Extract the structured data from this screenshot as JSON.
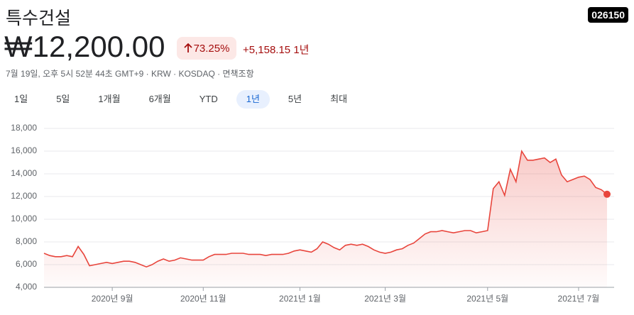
{
  "header": {
    "title": "특수건설",
    "ticker": "026150",
    "price": "₩12,200.00",
    "change_percent": "73.25%",
    "change": "+5,158.15",
    "period": "1년",
    "meta": "7월 19일, 오후 5시 52분 44초 GMT+9 · KRW · KOSDAQ · 면책조항"
  },
  "ranges": [
    "1일",
    "5일",
    "1개월",
    "6개월",
    "YTD",
    "1년",
    "5년",
    "최대"
  ],
  "selected_range": 5,
  "chart_data": {
    "type": "line",
    "series": [
      {
        "color": "#e8453c",
        "values": [
          7000,
          6800,
          6700,
          6700,
          6800,
          6700,
          7600,
          6900,
          5900,
          6000,
          6100,
          6200,
          6100,
          6200,
          6300,
          6300,
          6200,
          6000,
          5800,
          6000,
          6300,
          6500,
          6300,
          6400,
          6600,
          6500,
          6400,
          6400,
          6400,
          6700,
          6900,
          6900,
          6900,
          7000,
          7000,
          7000,
          6900,
          6900,
          6900,
          6800,
          6900,
          6900,
          6900,
          7000,
          7200,
          7300,
          7200,
          7100,
          7400,
          8000,
          7800,
          7500,
          7300,
          7700,
          7800,
          7700,
          7800,
          7600,
          7300,
          7100,
          7000,
          7100,
          7300,
          7400,
          7700,
          7900,
          8300,
          8700,
          8900,
          8900,
          9000,
          8900,
          8800,
          8900,
          9000,
          9000,
          8800,
          8900,
          9000,
          12700,
          13300,
          12100,
          14400,
          13300,
          16000,
          15200,
          15200,
          15300,
          15400,
          15000,
          15300,
          13900,
          13300,
          13500,
          13700,
          13800,
          13500,
          12800,
          12600,
          12200
        ]
      }
    ],
    "xlim": [
      0,
      99
    ],
    "xticks": [
      {
        "value": 12,
        "label": "2020년 9월"
      },
      {
        "value": 28,
        "label": "2020년 11월"
      },
      {
        "value": 45,
        "label": "2021년 1월"
      },
      {
        "value": 60,
        "label": "2021년 3월"
      },
      {
        "value": 78,
        "label": "2021년 5월"
      },
      {
        "value": 94,
        "label": "2021년 7월"
      }
    ],
    "ylim": [
      4000,
      18000
    ],
    "yticks": [
      {
        "value": 4000,
        "label": "4,000"
      },
      {
        "value": 6000,
        "label": "6,000"
      },
      {
        "value": 8000,
        "label": "8,000"
      },
      {
        "value": 10000,
        "label": "10,000"
      },
      {
        "value": 12000,
        "label": "12,000"
      },
      {
        "value": 14000,
        "label": "14,000"
      },
      {
        "value": 16000,
        "label": "16,000"
      },
      {
        "value": 18000,
        "label": "18,000"
      }
    ],
    "grid": true
  }
}
